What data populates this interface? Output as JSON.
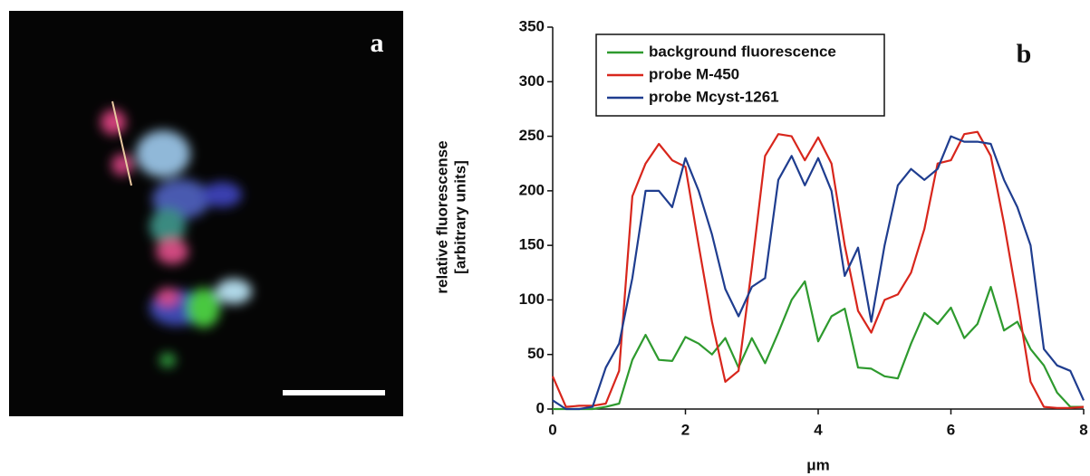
{
  "panel_a": {
    "label": "a"
  },
  "chart_data": {
    "type": "line",
    "panel_label": "b",
    "xlabel": "μm",
    "ylabel": [
      "relative fluorescense",
      "[arbitrary units]"
    ],
    "x": [
      0,
      0.2,
      0.4,
      0.6,
      0.8,
      1.0,
      1.2,
      1.4,
      1.6,
      1.8,
      2.0,
      2.2,
      2.4,
      2.6,
      2.8,
      3.0,
      3.2,
      3.4,
      3.6,
      3.8,
      4.0,
      4.2,
      4.4,
      4.6,
      4.8,
      5.0,
      5.2,
      5.4,
      5.6,
      5.8,
      6.0,
      6.2,
      6.4,
      6.6,
      6.8,
      7.0,
      7.2,
      7.4,
      7.6,
      7.8,
      8.0
    ],
    "series": [
      {
        "name": "background fluorescence",
        "color": "#2e9a2e",
        "values": [
          0,
          0,
          0,
          0,
          2,
          5,
          45,
          68,
          45,
          44,
          66,
          60,
          50,
          65,
          38,
          65,
          42,
          70,
          100,
          117,
          62,
          85,
          92,
          38,
          37,
          30,
          28,
          60,
          88,
          78,
          93,
          65,
          78,
          112,
          72,
          80,
          55,
          40,
          15,
          2,
          2
        ]
      },
      {
        "name": "probe M-450",
        "color": "#d8261c",
        "values": [
          30,
          2,
          3,
          3,
          5,
          35,
          195,
          225,
          243,
          228,
          222,
          150,
          80,
          25,
          35,
          130,
          232,
          252,
          250,
          228,
          249,
          225,
          150,
          90,
          70,
          100,
          105,
          125,
          165,
          225,
          228,
          252,
          254,
          232,
          170,
          100,
          25,
          2,
          1,
          1,
          2
        ]
      },
      {
        "name": "probe Mcyst-1261",
        "color": "#1f3d8f",
        "values": [
          8,
          0,
          0,
          2,
          38,
          60,
          120,
          200,
          200,
          185,
          230,
          200,
          160,
          110,
          85,
          112,
          120,
          210,
          232,
          205,
          230,
          200,
          122,
          148,
          80,
          150,
          205,
          220,
          210,
          220,
          250,
          245,
          245,
          243,
          210,
          185,
          150,
          55,
          40,
          35,
          8
        ]
      }
    ],
    "xlim": [
      0,
      8
    ],
    "xticks": [
      0,
      2,
      4,
      6,
      8
    ],
    "ylim": [
      0,
      350
    ],
    "yticks": [
      0,
      50,
      100,
      150,
      200,
      250,
      300,
      350
    ],
    "grid": false,
    "legend": "upper left"
  }
}
